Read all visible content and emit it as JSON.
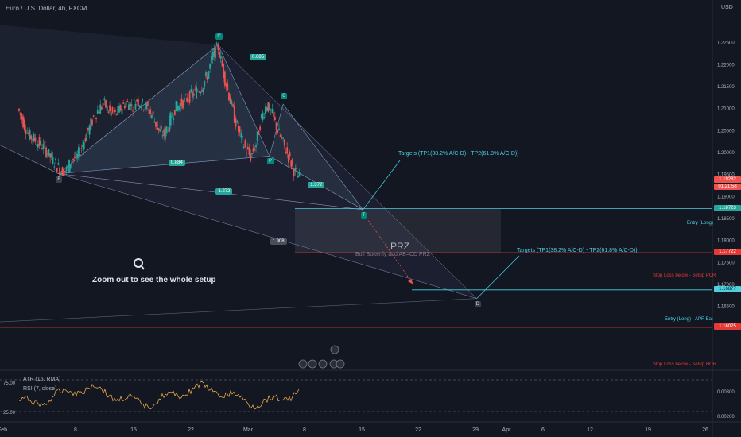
{
  "header": {
    "symbol": "Euro / U.S. Dollar, 4h, FXCM",
    "currency": "USD"
  },
  "colors": {
    "background": "#131722",
    "bull": "#26a69a",
    "bear": "#ef5350",
    "teal": "#4dd0e1",
    "red": "#e53935"
  },
  "chart_data": {
    "type": "candlestick",
    "price_axis": {
      "ylim": [
        1.155,
        1.23
      ],
      "ticks": [
        "1.22500",
        "1.22000",
        "1.21500",
        "1.21000",
        "1.20500",
        "1.20000",
        "1.19500",
        "1.19000",
        "1.18500",
        "1.18000",
        "1.17500",
        "1.17000",
        "1.16500"
      ]
    },
    "time_axis": {
      "ticks": [
        "Feb",
        "8",
        "15",
        "22",
        "Mar",
        "8",
        "15",
        "22",
        "29",
        "Apr",
        "6",
        "12",
        "19",
        "26"
      ]
    },
    "price_path": [
      [
        0,
        1.21
      ],
      [
        4,
        1.207
      ],
      [
        8,
        1.204
      ],
      [
        12,
        1.203
      ],
      [
        16,
        1.202
      ],
      [
        20,
        1.201
      ],
      [
        24,
        1.199
      ],
      [
        28,
        1.1975
      ],
      [
        32,
        1.1958
      ],
      [
        36,
        1.196
      ],
      [
        40,
        1.1985
      ],
      [
        44,
        1.199
      ],
      [
        48,
        1.202
      ],
      [
        52,
        1.205
      ],
      [
        56,
        1.208
      ],
      [
        60,
        1.21
      ],
      [
        64,
        1.211
      ],
      [
        68,
        1.209
      ],
      [
        72,
        1.2085
      ],
      [
        76,
        1.21
      ],
      [
        80,
        1.2115
      ],
      [
        84,
        1.2105
      ],
      [
        88,
        1.212
      ],
      [
        92,
        1.211
      ],
      [
        96,
        1.21
      ],
      [
        100,
        1.208
      ],
      [
        104,
        1.205
      ],
      [
        108,
        1.204
      ],
      [
        112,
        1.207
      ],
      [
        116,
        1.21
      ],
      [
        120,
        1.211
      ],
      [
        124,
        1.212
      ],
      [
        128,
        1.213
      ],
      [
        132,
        1.214
      ],
      [
        136,
        1.215
      ],
      [
        140,
        1.2175
      ],
      [
        144,
        1.222
      ],
      [
        148,
        1.224
      ],
      [
        152,
        1.218
      ],
      [
        156,
        1.213
      ],
      [
        160,
        1.208
      ],
      [
        164,
        1.204
      ],
      [
        168,
        1.201
      ],
      [
        172,
        1.199
      ],
      [
        176,
        1.202
      ],
      [
        180,
        1.208
      ],
      [
        184,
        1.211
      ],
      [
        188,
        1.2085
      ],
      [
        192,
        1.205
      ],
      [
        196,
        1.202
      ],
      [
        200,
        1.199
      ],
      [
        204,
        1.196
      ],
      [
        208,
        1.1942
      ]
    ],
    "harmonic": {
      "points": [
        {
          "label": "B",
          "t": 29,
          "p": 1.1952
        },
        {
          "label": "C",
          "t": 147,
          "p": 1.2245
        },
        {
          "label": "P",
          "t": 185,
          "p": 1.1992
        },
        {
          "label": "C",
          "t": 195,
          "p": 1.211
        },
        {
          "label": "T",
          "t": 254,
          "p": 1.187
        },
        {
          "label": "D",
          "t": 338,
          "p": 1.1668
        }
      ],
      "ratios": [
        {
          "text": "0.685",
          "t": 175,
          "p": 1.2215
        },
        {
          "text": "0.884",
          "t": 115,
          "p": 1.1975
        },
        {
          "text": "1.272",
          "t": 150,
          "p": 1.191
        },
        {
          "text": "1.372",
          "t": 218,
          "p": 1.1924
        },
        {
          "text": "1.908",
          "t": 190,
          "p": 1.1795,
          "dark": true
        }
      ],
      "levels": [
        {
          "label": "Entry (Long)",
          "price": 1.18723,
          "price_text": "1.18723",
          "kind": "entry"
        },
        {
          "label": "Stop Loss below - Setup PCR",
          "price": 1.17722,
          "price_text": "1.17722",
          "kind": "stop"
        },
        {
          "label": "Entry (Long) - APF-Bat",
          "price": 1.16877,
          "price_text": "1.16877",
          "kind": "entry"
        },
        {
          "label": "Stop Loss below - Setup HOR",
          "price": 1.16025,
          "price_text": "1.16025",
          "kind": "stop"
        }
      ],
      "current_price": {
        "price_text": "1.19282",
        "time_text": "01:21:58",
        "price": 1.19282
      }
    }
  },
  "annotations": {
    "prz_title": "PRZ",
    "prz_sub": "Bull Butterfly and AB=CD PRZ",
    "zoom_text": "Zoom out to see the whole setup",
    "target1": "Targets (TP1(38.2% A/C-D) - TP2(61.8% A/C-D))",
    "target2": "Targets (TP1(38.2% A/C-D) - TP2(61.8% A/C-D))"
  },
  "indicators": {
    "atr_label": "ATR (15, RMA)",
    "rsi_label": "RSI (7, close)",
    "left_ticks": [
      "75.00",
      "25.00"
    ],
    "right_ticks": [
      "0.00300",
      "0.00200"
    ]
  }
}
